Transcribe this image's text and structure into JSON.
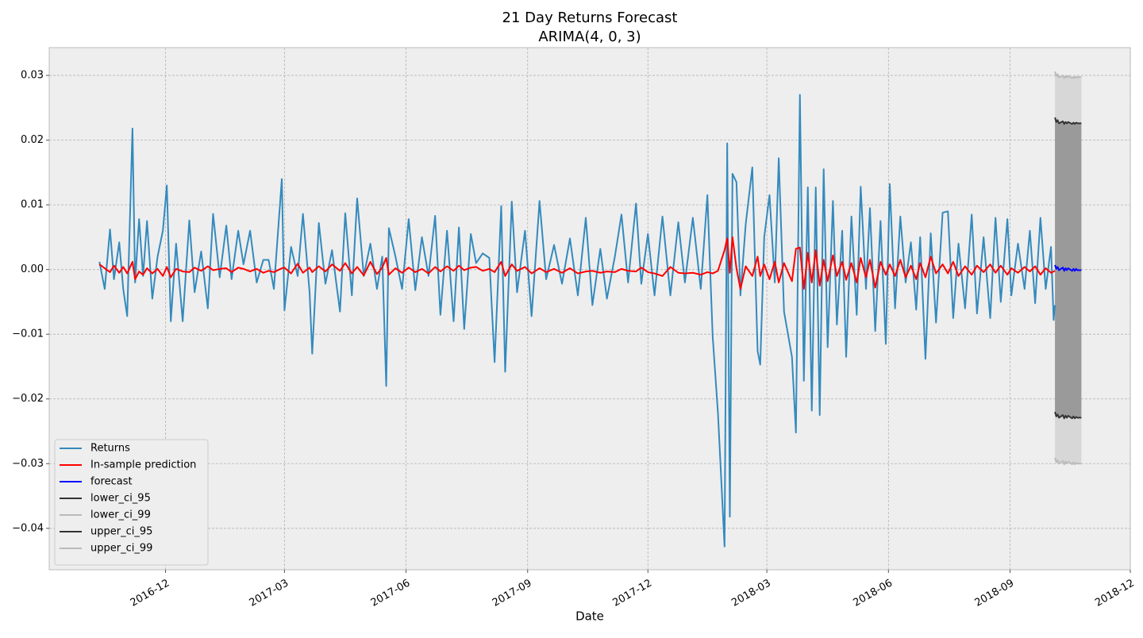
{
  "chart_data": {
    "type": "line",
    "title": "21 Day Returns Forecast",
    "subtitle": "ARIMA(4, 0, 3)",
    "x_label": "Date",
    "xlim": [
      17048,
      17866
    ],
    "ylim": [
      -0.0464,
      0.0343
    ],
    "grid": true,
    "legend": "lower left",
    "xticks": [
      {
        "value": 17136,
        "label": "2016-12"
      },
      {
        "value": 17226,
        "label": "2017-03"
      },
      {
        "value": 17318,
        "label": "2017-06"
      },
      {
        "value": 17410,
        "label": "2017-09"
      },
      {
        "value": 17501,
        "label": "2017-12"
      },
      {
        "value": 17591,
        "label": "2018-03"
      },
      {
        "value": 17683,
        "label": "2018-06"
      },
      {
        "value": 17775,
        "label": "2018-09"
      },
      {
        "value": 17866,
        "label": "2018-12"
      }
    ],
    "yticks": [
      {
        "value": -0.04,
        "label": "−0.04"
      },
      {
        "value": -0.03,
        "label": "−0.03"
      },
      {
        "value": -0.02,
        "label": "−0.02"
      },
      {
        "value": -0.01,
        "label": "−0.01"
      },
      {
        "value": 0,
        "label": "0.00"
      },
      0.01,
      0.02,
      0.03
    ],
    "x": [
      17086,
      17090,
      17094,
      17097,
      17101,
      17104,
      17107,
      17111,
      17113,
      17116,
      17119,
      17122,
      17126,
      17130,
      17134,
      17137,
      17140,
      17144,
      17149,
      17154,
      17158,
      17163,
      17168,
      17172,
      17177,
      17182,
      17186,
      17191,
      17195,
      17200,
      17205,
      17210,
      17214,
      17218,
      17224,
      17226,
      17231,
      17236,
      17240,
      17245,
      17247,
      17252,
      17257,
      17262,
      17268,
      17272,
      17277,
      17281,
      17286,
      17291,
      17296,
      17300,
      17303,
      17305,
      17310,
      17315,
      17320,
      17325,
      17330,
      17335,
      17340,
      17344,
      17349,
      17354,
      17358,
      17362,
      17367,
      17371,
      17376,
      17381,
      17385,
      17390,
      17393,
      17398,
      17402,
      17408,
      17413,
      17419,
      17424,
      17430,
      17436,
      17442,
      17448,
      17454,
      17459,
      17465,
      17470,
      17476,
      17481,
      17486,
      17492,
      17496,
      17501,
      17506,
      17512,
      17518,
      17524,
      17529,
      17535,
      17541,
      17546,
      17550,
      17554,
      17559,
      17561,
      17563,
      17565,
      17568,
      17571,
      17575,
      17580,
      17584,
      17586,
      17589,
      17593,
      17597,
      17600,
      17604,
      17610,
      17613,
      17616,
      17619,
      17622,
      17625,
      17628,
      17631,
      17634,
      17637,
      17641,
      17644,
      17648,
      17651,
      17655,
      17659,
      17662,
      17666,
      17669,
      17673,
      17677,
      17681,
      17684,
      17688,
      17692,
      17696,
      17700,
      17704,
      17707,
      17711,
      17715,
      17719,
      17724,
      17728,
      17732,
      17736,
      17741,
      17746,
      17750,
      17755,
      17760,
      17764,
      17768,
      17773,
      17776,
      17781,
      17786,
      17790,
      17794,
      17798,
      17802,
      17806,
      17808,
      17809
    ],
    "series": [
      {
        "name": "Returns",
        "color": "#348abd",
        "values": [
          0.0012,
          -0.003,
          0.0062,
          -0.0015,
          0.0042,
          -0.003,
          -0.0072,
          0.0218,
          -0.002,
          0.0078,
          -0.001,
          0.0075,
          -0.0045,
          0.002,
          0.006,
          0.013,
          -0.008,
          0.004,
          -0.008,
          0.0076,
          -0.0035,
          0.0028,
          -0.006,
          0.0086,
          -0.0012,
          0.0068,
          -0.0015,
          0.006,
          0.0008,
          0.006,
          -0.002,
          0.0015,
          0.0015,
          -0.003,
          0.014,
          -0.0063,
          0.0035,
          -0.001,
          0.0086,
          -0.0035,
          -0.013,
          0.0072,
          -0.0022,
          0.003,
          -0.0065,
          0.0087,
          -0.004,
          0.011,
          -0.001,
          0.004,
          -0.003,
          0.002,
          -0.018,
          0.0064,
          0.002,
          -0.003,
          0.0078,
          -0.0032,
          0.005,
          -0.001,
          0.0083,
          -0.007,
          0.006,
          -0.008,
          0.0065,
          -0.0092,
          0.0055,
          0.001,
          0.0025,
          0.0018,
          -0.0143,
          0.0098,
          -0.0158,
          0.0105,
          -0.0035,
          0.006,
          -0.0072,
          0.0106,
          -0.0015,
          0.0038,
          -0.0022,
          0.0048,
          -0.004,
          0.008,
          -0.0055,
          0.0032,
          -0.0045,
          0.002,
          0.0085,
          -0.002,
          0.0102,
          -0.0022,
          0.0055,
          -0.004,
          0.0082,
          -0.004,
          0.0073,
          -0.002,
          0.008,
          -0.003,
          0.0115,
          -0.0103,
          -0.0222,
          -0.0428,
          0.0195,
          -0.0382,
          0.0148,
          0.0135,
          -0.004,
          0.007,
          0.0158,
          -0.0126,
          -0.0147,
          0.005,
          0.0115,
          -0.002,
          0.0172,
          -0.0065,
          -0.0135,
          -0.0252,
          0.027,
          -0.0172,
          0.0127,
          -0.0218,
          0.0127,
          -0.0225,
          0.0155,
          -0.012,
          0.0106,
          -0.0085,
          0.006,
          -0.0135,
          0.0082,
          -0.007,
          0.0128,
          -0.003,
          0.0095,
          -0.0095,
          0.0075,
          -0.0115,
          0.0132,
          -0.006,
          0.0082,
          -0.002,
          0.0042,
          -0.0062,
          0.005,
          -0.0138,
          0.0056,
          -0.0082,
          0.0088,
          0.009,
          -0.0075,
          0.004,
          -0.006,
          0.0085,
          -0.0068,
          0.005,
          -0.0075,
          0.008,
          -0.005,
          0.0078,
          -0.004,
          0.004,
          -0.003,
          0.006,
          -0.0052,
          0.008,
          -0.003,
          0.0035,
          -0.0078,
          -0.0055
        ]
      },
      {
        "name": "In-sample prediction",
        "color": "#ff0000",
        "values": [
          0.0008,
          0.0002,
          -0.0004,
          0.0006,
          -0.0005,
          0.0004,
          -0.0006,
          0.0012,
          -0.0015,
          -0.0003,
          -0.0008,
          0.0002,
          -0.0006,
          0.0001,
          -0.001,
          0.0004,
          -0.0012,
          0.0001,
          -0.0003,
          -0.0004,
          0.0003,
          -0.0002,
          0.0005,
          -0.0001,
          0.0001,
          0.0002,
          -0.0004,
          0.0003,
          0.0001,
          -0.0003,
          0.0001,
          -0.0005,
          -0.0002,
          -0.0004,
          0.0002,
          0.0003,
          -0.0006,
          0.0009,
          -0.0005,
          0.0003,
          -0.0004,
          0.0005,
          -0.0003,
          0.0008,
          -0.0002,
          0.001,
          -0.0006,
          0.0004,
          -0.0009,
          0.0012,
          -0.0007,
          0.0003,
          0.0018,
          -0.0008,
          0.0002,
          -0.0005,
          0.0003,
          -0.0004,
          0.0001,
          -0.0006,
          0.0004,
          -0.0003,
          0.0005,
          -0.0002,
          0.0006,
          -0.0001,
          0.0003,
          0.0004,
          -0.0002,
          0.0001,
          -0.0004,
          0.0012,
          -0.001,
          0.0008,
          -0.0002,
          0.0004,
          -0.0006,
          0.0002,
          -0.0004,
          0.0001,
          -0.0005,
          0.0002,
          -0.0006,
          -0.0003,
          -0.0002,
          -0.0005,
          -0.0003,
          -0.0004,
          0.0001,
          -0.0002,
          -0.0003,
          0.0003,
          -0.0004,
          -0.0006,
          -0.001,
          0.0004,
          -0.0005,
          -0.0006,
          -0.0005,
          -0.0008,
          -0.0004,
          -0.0006,
          -0.0002,
          0.003,
          0.0048,
          -0.0005,
          0.005,
          0.0002,
          -0.003,
          0.0005,
          -0.001,
          0.002,
          -0.001,
          0.0008,
          -0.0015,
          0.0012,
          -0.002,
          0.001,
          -0.0018,
          0.0032,
          0.0034,
          -0.003,
          0.0026,
          -0.002,
          0.003,
          -0.0025,
          0.0015,
          -0.0018,
          0.0022,
          -0.001,
          0.0012,
          -0.0016,
          0.001,
          -0.002,
          0.0018,
          -0.0012,
          0.0015,
          -0.0028,
          0.0012,
          -0.0008,
          0.0008,
          -0.001,
          0.0015,
          -0.0012,
          0.0006,
          -0.0015,
          0.001,
          -0.0012,
          0.002,
          -0.0006,
          0.0008,
          -0.0006,
          0.0012,
          -0.001,
          0.0005,
          -0.0008,
          0.0006,
          -0.0004,
          0.0008,
          -0.0005,
          0.0006,
          -0.0008,
          0.0002,
          -0.0005,
          0.0004,
          -0.0003,
          0.0005,
          -0.0008,
          0.0002,
          -0.0005,
          -0.0003,
          -0.0002
        ]
      },
      {
        "name": "forecast",
        "color": "#0000ff",
        "x": [
          17809,
          17810,
          17811,
          17812,
          17815,
          17816,
          17817,
          17818,
          17819,
          17822,
          17823,
          17824,
          17825,
          17826,
          17829
        ],
        "values": [
          0.0007,
          0.0001,
          0.0004,
          -0.0001,
          0.0003,
          -0.0002,
          0.0002,
          -0.0001,
          0.0002,
          -0.0002,
          0.0001,
          -0.0002,
          0.0001,
          -0.0001,
          -0.0001
        ]
      },
      {
        "name": "lower_ci_95",
        "color": "#333333",
        "fill": "#9a9a9a",
        "x": [
          17809,
          17810,
          17811,
          17812,
          17815,
          17816,
          17817,
          17818,
          17819,
          17822,
          17823,
          17824,
          17825,
          17826,
          17829
        ],
        "values": [
          -0.022,
          -0.0227,
          -0.0224,
          -0.0229,
          -0.0225,
          -0.023,
          -0.0226,
          -0.0229,
          -0.0226,
          -0.023,
          -0.0227,
          -0.023,
          -0.0228,
          -0.0229,
          -0.0229
        ]
      },
      {
        "name": "lower_ci_99",
        "color": "#bbbbbb",
        "fill": "#d7d7d7",
        "x": [
          17809,
          17810,
          17811,
          17812,
          17815,
          17816,
          17817,
          17818,
          17819,
          17822,
          17823,
          17824,
          17825,
          17826,
          17829
        ],
        "values": [
          -0.0291,
          -0.0298,
          -0.0295,
          -0.03,
          -0.0296,
          -0.0301,
          -0.0297,
          -0.03,
          -0.0297,
          -0.0301,
          -0.0298,
          -0.0301,
          -0.0299,
          -0.03,
          -0.03
        ]
      },
      {
        "name": "upper_ci_95",
        "color": "#333333",
        "fill": "#9a9a9a",
        "x": [
          17809,
          17810,
          17811,
          17812,
          17815,
          17816,
          17817,
          17818,
          17819,
          17822,
          17823,
          17824,
          17825,
          17826,
          17829
        ],
        "values": [
          0.0235,
          0.0228,
          0.0231,
          0.0226,
          0.0229,
          0.0225,
          0.0228,
          0.0226,
          0.0228,
          0.0225,
          0.0227,
          0.0225,
          0.0227,
          0.0226,
          0.0226
        ]
      },
      {
        "name": "upper_ci_99",
        "color": "#bbbbbb",
        "fill": "#d7d7d7",
        "x": [
          17809,
          17810,
          17811,
          17812,
          17815,
          17816,
          17817,
          17818,
          17819,
          17822,
          17823,
          17824,
          17825,
          17826,
          17829
        ],
        "values": [
          0.0306,
          0.0299,
          0.0302,
          0.0297,
          0.03,
          0.0296,
          0.0299,
          0.0297,
          0.0299,
          0.0296,
          0.0298,
          0.0296,
          0.0298,
          0.0297,
          0.0298
        ]
      }
    ]
  }
}
